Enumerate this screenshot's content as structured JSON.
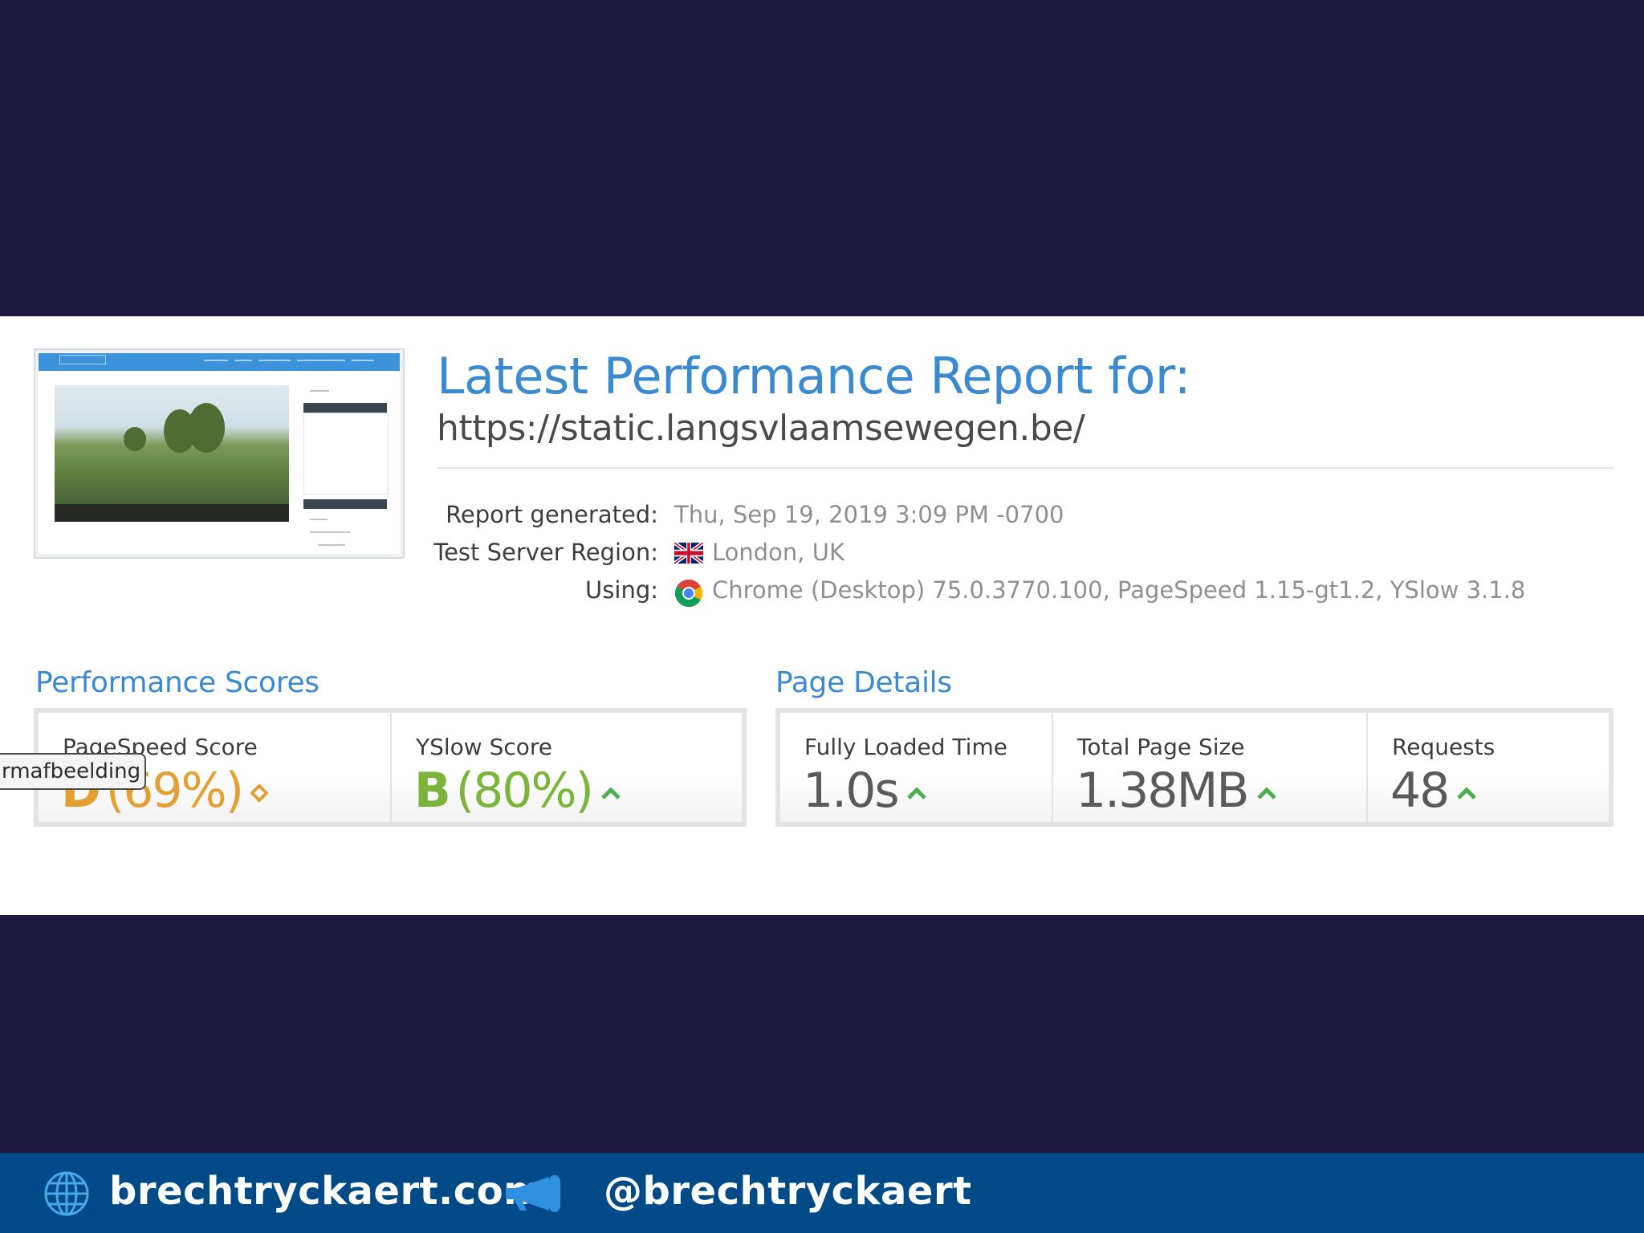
{
  "report": {
    "title": "Latest Performance Report for:",
    "url": "https://static.langsvlaamsewegen.be/",
    "meta": {
      "generated_label": "Report generated:",
      "generated_value": "Thu, Sep 19, 2019 3:09 PM -0700",
      "region_label": "Test Server Region:",
      "region_value": "London, UK",
      "region_flag": "uk-flag-icon",
      "using_label": "Using:",
      "using_value": "Chrome (Desktop) 75.0.3770.100, PageSpeed 1.15-gt1.2, YSlow 3.1.8",
      "using_icon": "chrome-icon"
    }
  },
  "performance_scores": {
    "title": "Performance Scores",
    "pagespeed": {
      "label": "PageSpeed Score",
      "grade": "D",
      "percent": "(69%)",
      "trend_icon": "diamond-icon",
      "color": "#e2a033"
    },
    "yslow": {
      "label": "YSlow Score",
      "grade": "B",
      "percent": "(80%)",
      "trend_icon": "up-arrow-icon",
      "color": "#7ab43a"
    }
  },
  "page_details": {
    "title": "Page Details",
    "fully_loaded": {
      "label": "Fully Loaded Time",
      "value": "1.0s",
      "trend_icon": "up-arrow-icon"
    },
    "page_size": {
      "label": "Total Page Size",
      "value": "1.38MB",
      "trend_icon": "up-arrow-icon"
    },
    "requests": {
      "label": "Requests",
      "value": "48",
      "trend_icon": "up-arrow-icon"
    }
  },
  "tooltip": {
    "text": "rmafbeelding"
  },
  "footer": {
    "website": "brechtryckaert.com",
    "handle": "@brechtryckaert",
    "website_icon": "globe-icon",
    "handle_icon": "megaphone-icon"
  },
  "colors": {
    "background": "#1c1840",
    "accent_blue": "#3b89cf",
    "footer_blue": "#004b87",
    "trend_green": "#4cae4c",
    "pagespeed_orange": "#e2a033",
    "yslow_green": "#7ab43a"
  }
}
